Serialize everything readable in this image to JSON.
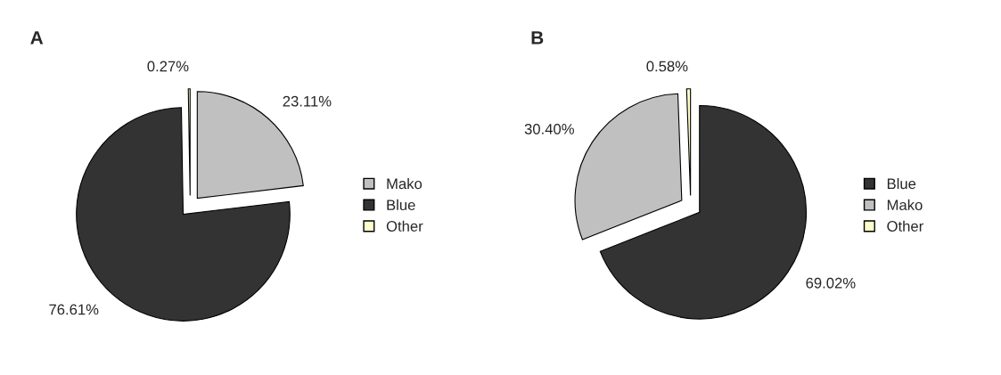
{
  "chart_data": [
    {
      "type": "pie",
      "title": "A",
      "categories": [
        "Mako",
        "Blue",
        "Other"
      ],
      "values": [
        23.11,
        76.61,
        0.27
      ],
      "colors": [
        "#c0c0c0",
        "#333333",
        "#ffffcc"
      ],
      "value_labels": [
        "23.11%",
        "76.61%",
        "0.27%"
      ],
      "legend": "right"
    },
    {
      "type": "pie",
      "title": "B",
      "categories": [
        "Blue",
        "Mako",
        "Other"
      ],
      "values": [
        69.02,
        30.4,
        0.58
      ],
      "colors": [
        "#333333",
        "#c0c0c0",
        "#ffffcc"
      ],
      "value_labels": [
        "69.02%",
        "30.40%",
        "0.58%"
      ],
      "legend": "right"
    }
  ]
}
